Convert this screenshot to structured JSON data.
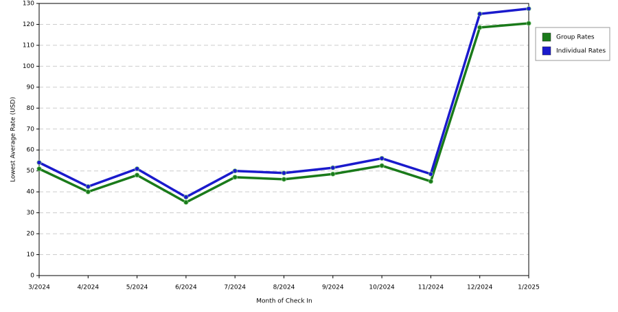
{
  "chart_data": {
    "type": "line",
    "x_label": "Month of Check In",
    "y_label": "Lowest Average Rate (USD)",
    "categories": [
      "3/2024",
      "4/2024",
      "5/2024",
      "6/2024",
      "7/2024",
      "8/2024",
      "9/2024",
      "10/2024",
      "11/2024",
      "12/2024",
      "1/2025"
    ],
    "series": [
      {
        "name": "Group Rates",
        "color": "#1a7a1a",
        "values": [
          51,
          40,
          48,
          35,
          47,
          46,
          48.5,
          52.5,
          45,
          118.5,
          120.5
        ]
      },
      {
        "name": "Individual Rates",
        "color": "#1a1acc",
        "values": [
          54,
          42.5,
          51,
          37.5,
          50,
          49,
          51.5,
          56,
          48.5,
          125,
          127.5
        ]
      }
    ],
    "ylim": [
      0,
      130
    ],
    "yticks": [
      0,
      10,
      20,
      30,
      40,
      50,
      60,
      70,
      80,
      90,
      100,
      110,
      120,
      130
    ],
    "grid": true,
    "legend": "right"
  }
}
